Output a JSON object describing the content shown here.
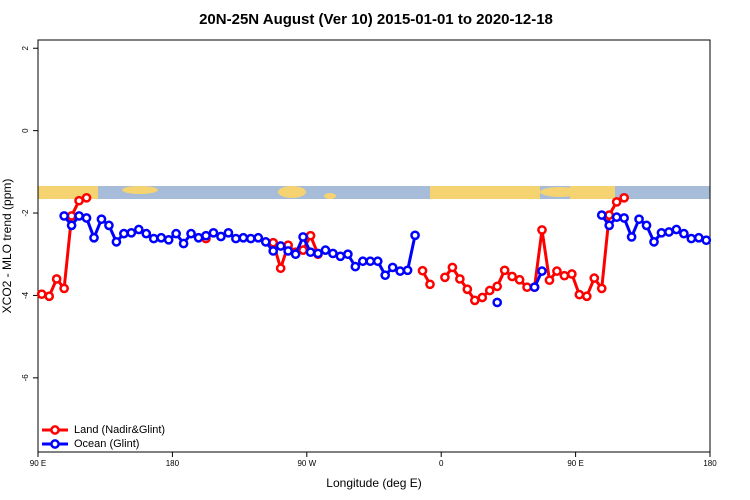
{
  "chart_data": {
    "type": "line",
    "title": "20N-25N August (Ver 10)   2015-01-01 to 2020-12-18",
    "xlabel": "Longitude (deg E)",
    "ylabel": "XCO2 - MLO trend (ppm)",
    "x": [
      92.5,
      97.5,
      102.5,
      107.5,
      112.5,
      117.5,
      122.5,
      127.5,
      132.5,
      137.5,
      142.5,
      147.5,
      152.5,
      157.5,
      162.5,
      167.5,
      172.5,
      177.5,
      182.5,
      187.5,
      192.5,
      197.5,
      202.5,
      207.5,
      212.5,
      217.5,
      222.5,
      227.5,
      232.5,
      237.5,
      242.5,
      247.5,
      252.5,
      257.5,
      262.5,
      267.5,
      272.5,
      277.5,
      282.5,
      287.5,
      292.5,
      297.5,
      302.5,
      307.5,
      312.5,
      317.5,
      322.5,
      327.5,
      332.5,
      337.5,
      342.5,
      347.5,
      352.5,
      357.5,
      362.5,
      367.5,
      372.5,
      377.5,
      382.5,
      387.5,
      392.5,
      397.5,
      402.5,
      407.5,
      412.5,
      417.5,
      422.5,
      427.5,
      432.5,
      437.5,
      442.5,
      447.5,
      452.5,
      457.5,
      462.5,
      467.5,
      472.5,
      477.5,
      482.5,
      487.5,
      492.5,
      497.5,
      502.5,
      507.5,
      512.5,
      517.5,
      522.5,
      527.5,
      532.5,
      537.5
    ],
    "series": [
      {
        "name": "Land (Nadir&Glint)",
        "color": "#ff0000",
        "values": [
          -3.97,
          -4.02,
          -3.6,
          -3.83,
          -2.07,
          -1.7,
          -1.63,
          null,
          null,
          null,
          null,
          null,
          null,
          null,
          null,
          null,
          null,
          null,
          null,
          null,
          null,
          null,
          -2.62,
          null,
          null,
          null,
          null,
          null,
          null,
          null,
          null,
          -2.72,
          -3.34,
          -2.78,
          -2.95,
          -2.9,
          -2.55,
          -3.0,
          null,
          null,
          null,
          null,
          null,
          null,
          null,
          null,
          null,
          null,
          null,
          null,
          null,
          -3.4,
          -3.73,
          null,
          -3.56,
          -3.32,
          -3.6,
          -3.85,
          -4.12,
          -4.05,
          -3.88,
          -3.78,
          -3.39,
          -3.54,
          -3.62,
          -3.8,
          -3.8,
          -2.41,
          -3.63,
          -3.41,
          -3.52,
          -3.48,
          -3.98,
          -4.02,
          -3.58,
          -3.83,
          -2.05,
          -1.73,
          -1.63,
          null,
          null,
          null,
          null,
          null,
          null,
          null,
          null,
          null,
          null,
          null
        ]
      },
      {
        "name": "Ocean (Glint)",
        "color": "#0000ff",
        "values": [
          null,
          null,
          null,
          -2.07,
          -2.3,
          -2.07,
          -2.12,
          -2.6,
          -2.15,
          -2.3,
          -2.7,
          -2.5,
          -2.48,
          -2.4,
          -2.5,
          -2.62,
          -2.6,
          -2.65,
          -2.5,
          -2.74,
          -2.5,
          -2.6,
          -2.55,
          -2.48,
          -2.57,
          -2.48,
          -2.62,
          -2.6,
          -2.62,
          -2.6,
          -2.7,
          -2.92,
          -2.8,
          -2.92,
          -3.0,
          -2.58,
          -2.95,
          -2.98,
          -2.9,
          -2.98,
          -3.05,
          -3.0,
          -3.3,
          -3.17,
          -3.17,
          -3.17,
          -3.51,
          -3.32,
          -3.41,
          -3.39,
          -2.54,
          null,
          null,
          null,
          null,
          null,
          null,
          null,
          null,
          null,
          null,
          -4.17,
          null,
          null,
          null,
          null,
          -3.8,
          -3.41,
          null,
          null,
          null,
          null,
          null,
          null,
          null,
          -2.05,
          -2.3,
          -2.1,
          -2.12,
          -2.58,
          -2.15,
          -2.3,
          -2.7,
          -2.48,
          -2.46,
          -2.4,
          -2.5,
          -2.62,
          -2.6,
          -2.66
        ]
      }
    ],
    "xlim": [
      90,
      540
    ],
    "xticks": [
      {
        "value": 90,
        "label": "90 E"
      },
      180,
      {
        "value": 270,
        "label": "90 W"
      },
      {
        "value": 360,
        "label": "0"
      },
      {
        "value": 450,
        "label": "90 E"
      },
      {
        "value": 540,
        "label": "180"
      }
    ],
    "ylim": [
      -7.8,
      2.2
    ],
    "yticks": [
      -6,
      -4,
      -2,
      0,
      2
    ],
    "legend": "bottomleft"
  }
}
